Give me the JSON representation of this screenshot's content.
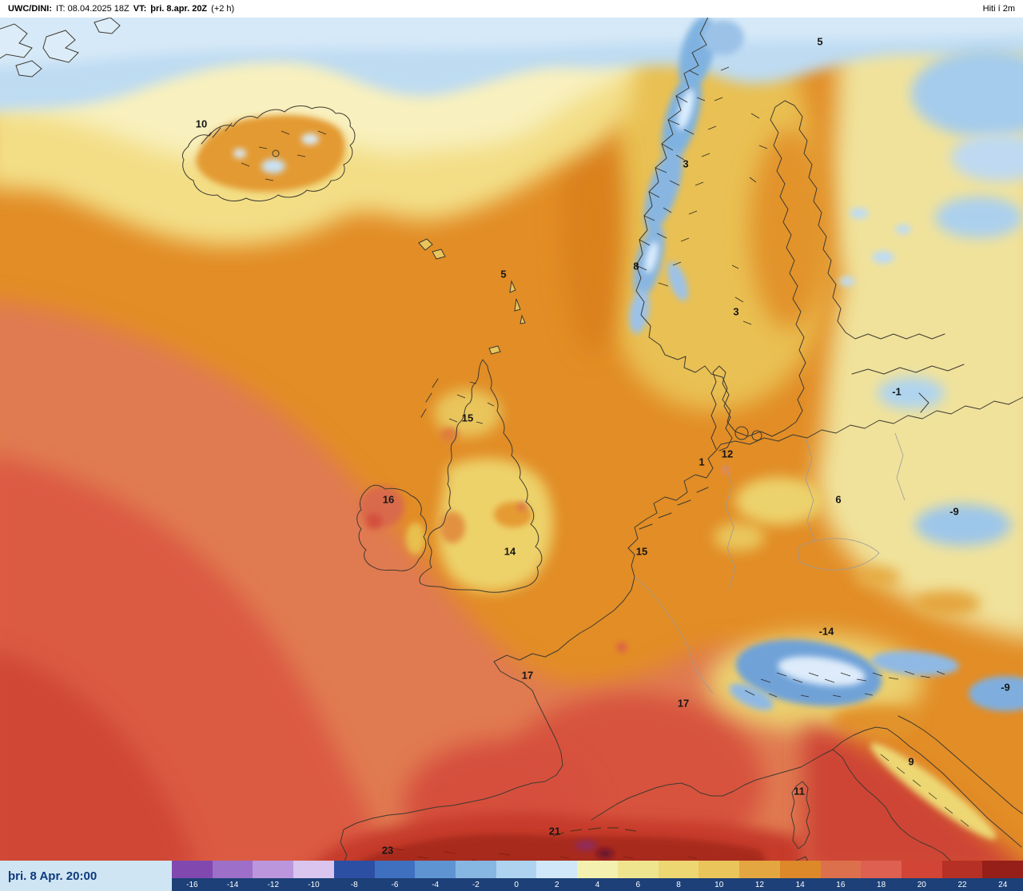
{
  "header": {
    "product": "UWC/DINI:",
    "init": "IT: 08.04.2025 18Z",
    "vt_label": "VT:",
    "valid": "þri. 8.apr. 20Z",
    "offset": "(+2 h)",
    "parameter": "Hiti í 2m"
  },
  "footer": {
    "datetime": "þri. 8 Apr. 20:00"
  },
  "colorbar": {
    "ticks": [
      "-16",
      "-14",
      "-12",
      "-10",
      "-8",
      "-6",
      "-4",
      "-2",
      "0",
      "2",
      "4",
      "6",
      "8",
      "10",
      "12",
      "14",
      "16",
      "18",
      "20",
      "22",
      "24"
    ],
    "colors": [
      "#8148b0",
      "#9d6fc9",
      "#bb96dd",
      "#d9c5ee",
      "#2c4fa3",
      "#3e70bf",
      "#5f94d2",
      "#86b6e2",
      "#aed3f0",
      "#cfe7f8",
      "#f3f0b0",
      "#f0e58f",
      "#edd772",
      "#eac55b",
      "#e4a640",
      "#dd8829",
      "#dc704c",
      "#dd6051",
      "#d24435",
      "#b63026",
      "#961f1a"
    ]
  },
  "map": {
    "labels": [
      {
        "value": "10"
      },
      {
        "value": "5"
      },
      {
        "value": "3"
      },
      {
        "value": "8"
      },
      {
        "value": "5"
      },
      {
        "value": "3"
      },
      {
        "value": "-1"
      },
      {
        "value": "15"
      },
      {
        "value": "12"
      },
      {
        "value": "1"
      },
      {
        "value": "16"
      },
      {
        "value": "6"
      },
      {
        "value": "-9"
      },
      {
        "value": "14"
      },
      {
        "value": "15"
      },
      {
        "value": "-14"
      },
      {
        "value": "17"
      },
      {
        "value": "-9"
      },
      {
        "value": "17"
      },
      {
        "value": "9"
      },
      {
        "value": "11"
      },
      {
        "value": "21"
      },
      {
        "value": "23"
      }
    ]
  }
}
